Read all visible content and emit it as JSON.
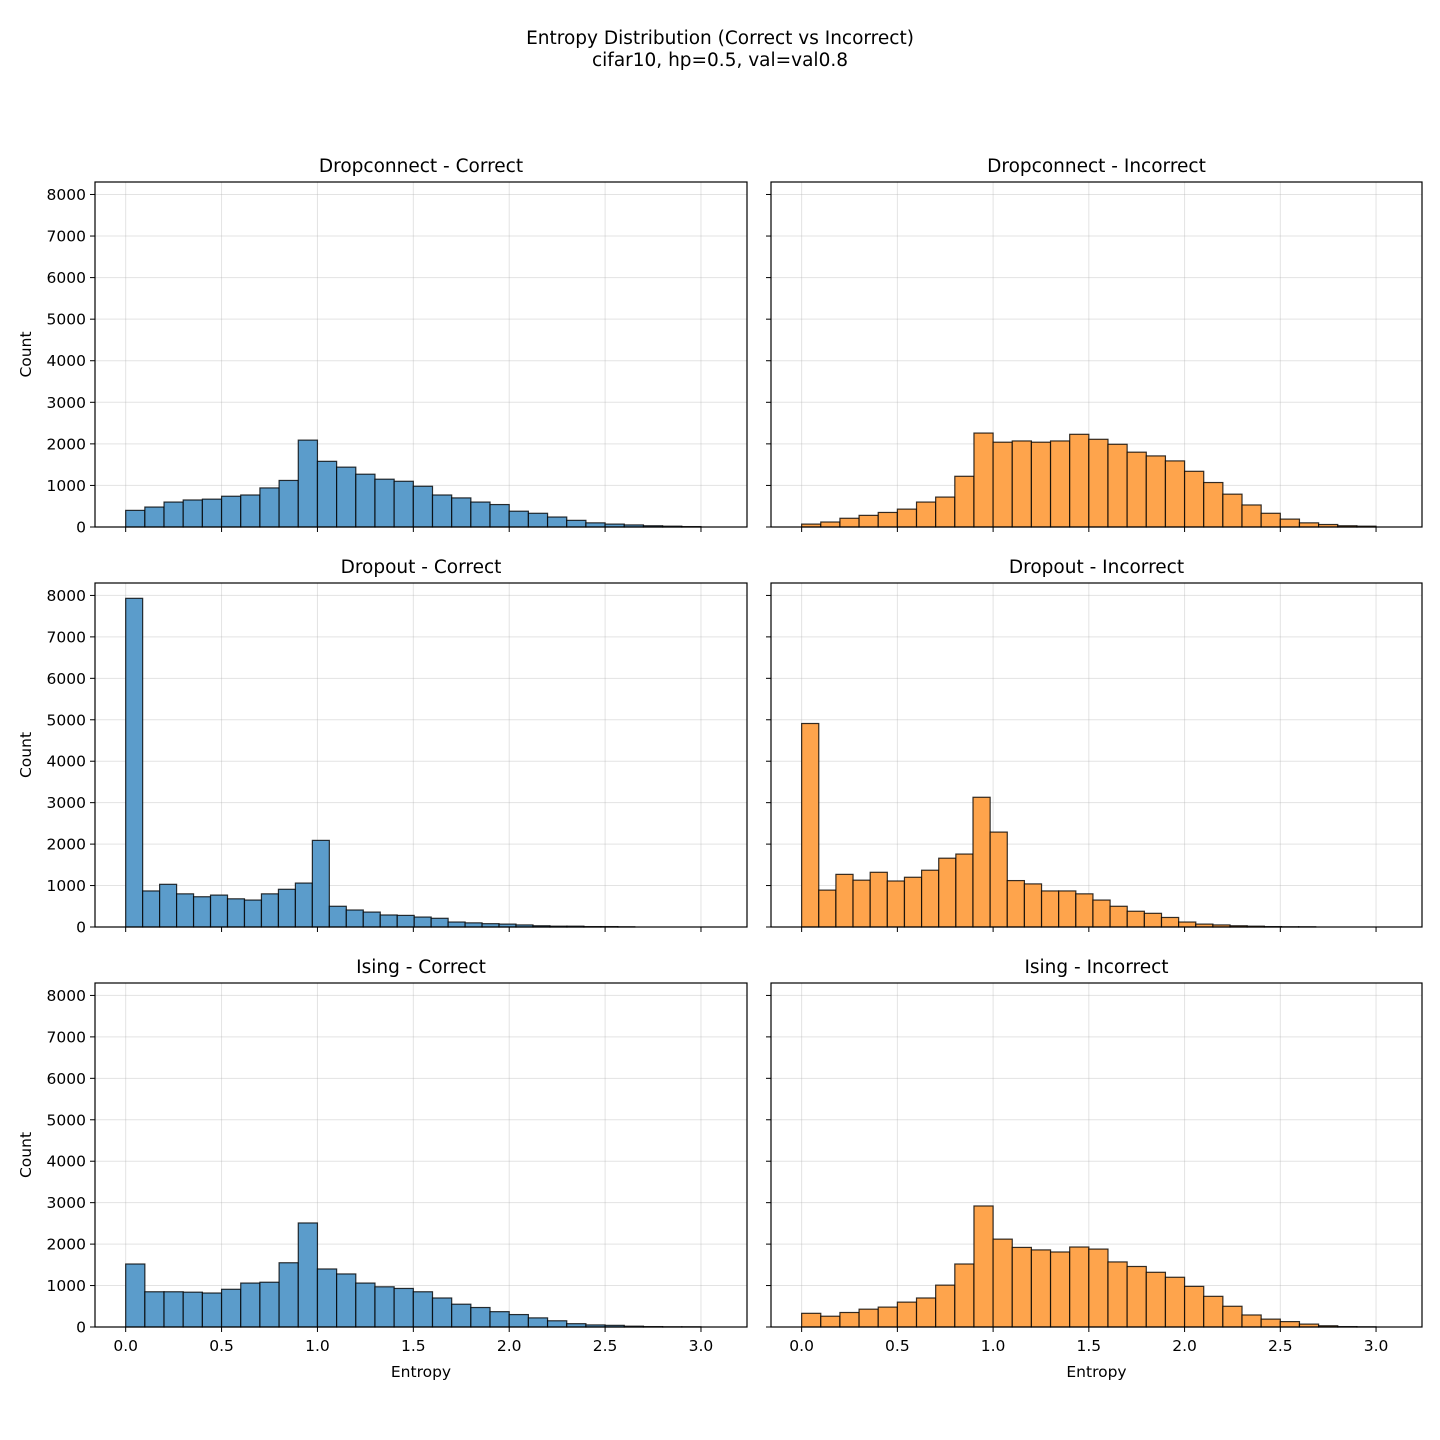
{
  "suptitle": {
    "line1": "Entropy Distribution (Correct vs Incorrect)",
    "line2": "cifar10, hp=0.5, val=val0.8"
  },
  "colors": {
    "correct": "#5b9ccb",
    "incorrect": "#fea44c"
  },
  "chart_data": [
    {
      "type": "bar",
      "title": "Dropconnect - Correct",
      "series_kind": "correct",
      "xlabel": "",
      "ylabel": "Count",
      "show_xticklabels": false,
      "show_yticklabels": true,
      "xlim": [
        -0.16,
        3.24
      ],
      "ylim": [
        0,
        8300
      ],
      "bin_width": 0.1,
      "bin_starts": [
        0.0,
        0.1,
        0.2,
        0.3,
        0.4,
        0.5,
        0.6,
        0.7,
        0.8,
        0.9,
        1.0,
        1.1,
        1.2,
        1.3,
        1.4,
        1.5,
        1.6,
        1.7,
        1.8,
        1.9,
        2.0,
        2.1,
        2.2,
        2.3,
        2.4,
        2.5,
        2.6,
        2.7,
        2.8,
        2.9
      ],
      "values": [
        400,
        480,
        600,
        650,
        670,
        740,
        770,
        940,
        1120,
        2090,
        1580,
        1440,
        1270,
        1150,
        1100,
        980,
        770,
        700,
        600,
        540,
        380,
        330,
        240,
        160,
        100,
        70,
        50,
        30,
        20,
        10
      ],
      "xticks": [
        0.0,
        0.5,
        1.0,
        1.5,
        2.0,
        2.5,
        3.0
      ],
      "xtick_labels": [
        "0.0",
        "0.5",
        "1.0",
        "1.5",
        "2.0",
        "2.5",
        "3.0"
      ],
      "yticks": [
        0,
        1000,
        2000,
        3000,
        4000,
        5000,
        6000,
        7000,
        8000
      ],
      "ytick_labels": [
        "0",
        "1000",
        "2000",
        "3000",
        "4000",
        "5000",
        "6000",
        "7000",
        "8000"
      ],
      "grid": true
    },
    {
      "type": "bar",
      "title": "Dropconnect - Incorrect",
      "series_kind": "incorrect",
      "xlabel": "",
      "ylabel": "",
      "show_xticklabels": false,
      "show_yticklabels": false,
      "xlim": [
        -0.16,
        3.24
      ],
      "ylim": [
        0,
        8300
      ],
      "bin_width": 0.1,
      "bin_starts": [
        0.0,
        0.1,
        0.2,
        0.3,
        0.4,
        0.5,
        0.6,
        0.7,
        0.8,
        0.9,
        1.0,
        1.1,
        1.2,
        1.3,
        1.4,
        1.5,
        1.6,
        1.7,
        1.8,
        1.9,
        2.0,
        2.1,
        2.2,
        2.3,
        2.4,
        2.5,
        2.6,
        2.7,
        2.8,
        2.9
      ],
      "values": [
        70,
        120,
        210,
        280,
        350,
        430,
        600,
        720,
        1220,
        2260,
        2040,
        2070,
        2040,
        2070,
        2230,
        2110,
        1990,
        1800,
        1710,
        1590,
        1340,
        1070,
        790,
        530,
        330,
        190,
        100,
        60,
        30,
        20
      ],
      "xticks": [
        0.0,
        0.5,
        1.0,
        1.5,
        2.0,
        2.5,
        3.0
      ],
      "xtick_labels": [
        "0.0",
        "0.5",
        "1.0",
        "1.5",
        "2.0",
        "2.5",
        "3.0"
      ],
      "yticks": [
        0,
        1000,
        2000,
        3000,
        4000,
        5000,
        6000,
        7000,
        8000
      ],
      "ytick_labels": [
        "0",
        "1000",
        "2000",
        "3000",
        "4000",
        "5000",
        "6000",
        "7000",
        "8000"
      ],
      "grid": true
    },
    {
      "type": "bar",
      "title": "Dropout - Correct",
      "series_kind": "correct",
      "xlabel": "",
      "ylabel": "Count",
      "show_xticklabels": false,
      "show_yticklabels": true,
      "xlim": [
        -0.16,
        3.24
      ],
      "ylim": [
        0,
        8300
      ],
      "bin_width": 0.0885,
      "bin_starts": [
        0.0,
        0.0885,
        0.177,
        0.2655,
        0.354,
        0.4425,
        0.531,
        0.6195,
        0.708,
        0.7965,
        0.885,
        0.9735,
        1.062,
        1.1505,
        1.239,
        1.3275,
        1.416,
        1.5045,
        1.593,
        1.6815,
        1.77,
        1.8585,
        1.947,
        2.0355,
        2.124,
        2.2125,
        2.301,
        2.3895,
        2.478,
        2.5665
      ],
      "values": [
        7930,
        870,
        1030,
        800,
        730,
        770,
        680,
        650,
        800,
        910,
        1060,
        2090,
        500,
        410,
        360,
        290,
        280,
        240,
        210,
        120,
        100,
        80,
        70,
        50,
        30,
        20,
        20,
        10,
        10,
        5
      ],
      "xticks": [
        0.0,
        0.5,
        1.0,
        1.5,
        2.0,
        2.5,
        3.0
      ],
      "xtick_labels": [
        "0.0",
        "0.5",
        "1.0",
        "1.5",
        "2.0",
        "2.5",
        "3.0"
      ],
      "yticks": [
        0,
        1000,
        2000,
        3000,
        4000,
        5000,
        6000,
        7000,
        8000
      ],
      "ytick_labels": [
        "0",
        "1000",
        "2000",
        "3000",
        "4000",
        "5000",
        "6000",
        "7000",
        "8000"
      ],
      "grid": true
    },
    {
      "type": "bar",
      "title": "Dropout - Incorrect",
      "series_kind": "incorrect",
      "xlabel": "",
      "ylabel": "",
      "show_xticklabels": false,
      "show_yticklabels": false,
      "xlim": [
        -0.16,
        3.24
      ],
      "ylim": [
        0,
        8300
      ],
      "bin_width": 0.0895,
      "bin_starts": [
        0.0,
        0.0895,
        0.179,
        0.2685,
        0.358,
        0.4475,
        0.537,
        0.6265,
        0.716,
        0.8055,
        0.895,
        0.9845,
        1.074,
        1.1635,
        1.253,
        1.3425,
        1.432,
        1.5215,
        1.611,
        1.7005,
        1.79,
        1.8795,
        1.969,
        2.0585,
        2.148,
        2.2375,
        2.327,
        2.4165,
        2.506,
        2.5955
      ],
      "values": [
        4910,
        890,
        1270,
        1130,
        1320,
        1110,
        1200,
        1370,
        1660,
        1760,
        3130,
        2290,
        1120,
        1040,
        870,
        870,
        800,
        650,
        500,
        380,
        330,
        230,
        120,
        70,
        50,
        30,
        20,
        10,
        5,
        5
      ],
      "xticks": [
        0.0,
        0.5,
        1.0,
        1.5,
        2.0,
        2.5,
        3.0
      ],
      "xtick_labels": [
        "0.0",
        "0.5",
        "1.0",
        "1.5",
        "2.0",
        "2.5",
        "3.0"
      ],
      "yticks": [
        0,
        1000,
        2000,
        3000,
        4000,
        5000,
        6000,
        7000,
        8000
      ],
      "ytick_labels": [
        "0",
        "1000",
        "2000",
        "3000",
        "4000",
        "5000",
        "6000",
        "7000",
        "8000"
      ],
      "grid": true
    },
    {
      "type": "bar",
      "title": "Ising - Correct",
      "series_kind": "correct",
      "xlabel": "Entropy",
      "ylabel": "Count",
      "show_xticklabels": true,
      "show_yticklabels": true,
      "xlim": [
        -0.16,
        3.24
      ],
      "ylim": [
        0,
        8300
      ],
      "bin_width": 0.1,
      "bin_starts": [
        0.0,
        0.1,
        0.2,
        0.3,
        0.4,
        0.5,
        0.6,
        0.7,
        0.8,
        0.9,
        1.0,
        1.1,
        1.2,
        1.3,
        1.4,
        1.5,
        1.6,
        1.7,
        1.8,
        1.9,
        2.0,
        2.1,
        2.2,
        2.3,
        2.4,
        2.5,
        2.6,
        2.7,
        2.8,
        2.9
      ],
      "values": [
        1520,
        850,
        850,
        840,
        820,
        910,
        1060,
        1080,
        1550,
        2510,
        1400,
        1280,
        1060,
        970,
        930,
        850,
        700,
        550,
        470,
        370,
        300,
        220,
        150,
        80,
        50,
        40,
        20,
        10,
        5,
        5
      ],
      "xticks": [
        0.0,
        0.5,
        1.0,
        1.5,
        2.0,
        2.5,
        3.0
      ],
      "xtick_labels": [
        "0.0",
        "0.5",
        "1.0",
        "1.5",
        "2.0",
        "2.5",
        "3.0"
      ],
      "yticks": [
        0,
        1000,
        2000,
        3000,
        4000,
        5000,
        6000,
        7000,
        8000
      ],
      "ytick_labels": [
        "0",
        "1000",
        "2000",
        "3000",
        "4000",
        "5000",
        "6000",
        "7000",
        "8000"
      ],
      "grid": true
    },
    {
      "type": "bar",
      "title": "Ising - Incorrect",
      "series_kind": "incorrect",
      "xlabel": "Entropy",
      "ylabel": "",
      "show_xticklabels": true,
      "show_yticklabels": false,
      "xlim": [
        -0.16,
        3.24
      ],
      "ylim": [
        0,
        8300
      ],
      "bin_width": 0.1,
      "bin_starts": [
        0.0,
        0.1,
        0.2,
        0.3,
        0.4,
        0.5,
        0.6,
        0.7,
        0.8,
        0.9,
        1.0,
        1.1,
        1.2,
        1.3,
        1.4,
        1.5,
        1.6,
        1.7,
        1.8,
        1.9,
        2.0,
        2.1,
        2.2,
        2.3,
        2.4,
        2.5,
        2.6,
        2.7,
        2.8,
        2.9
      ],
      "values": [
        330,
        260,
        350,
        430,
        480,
        600,
        700,
        1010,
        1520,
        2920,
        2120,
        1920,
        1860,
        1810,
        1930,
        1880,
        1570,
        1460,
        1320,
        1200,
        980,
        740,
        500,
        290,
        190,
        130,
        70,
        30,
        10,
        5
      ],
      "xticks": [
        0.0,
        0.5,
        1.0,
        1.5,
        2.0,
        2.5,
        3.0
      ],
      "xtick_labels": [
        "0.0",
        "0.5",
        "1.0",
        "1.5",
        "2.0",
        "2.5",
        "3.0"
      ],
      "yticks": [
        0,
        1000,
        2000,
        3000,
        4000,
        5000,
        6000,
        7000,
        8000
      ],
      "ytick_labels": [
        "0",
        "1000",
        "2000",
        "3000",
        "4000",
        "5000",
        "6000",
        "7000",
        "8000"
      ],
      "grid": true
    }
  ]
}
